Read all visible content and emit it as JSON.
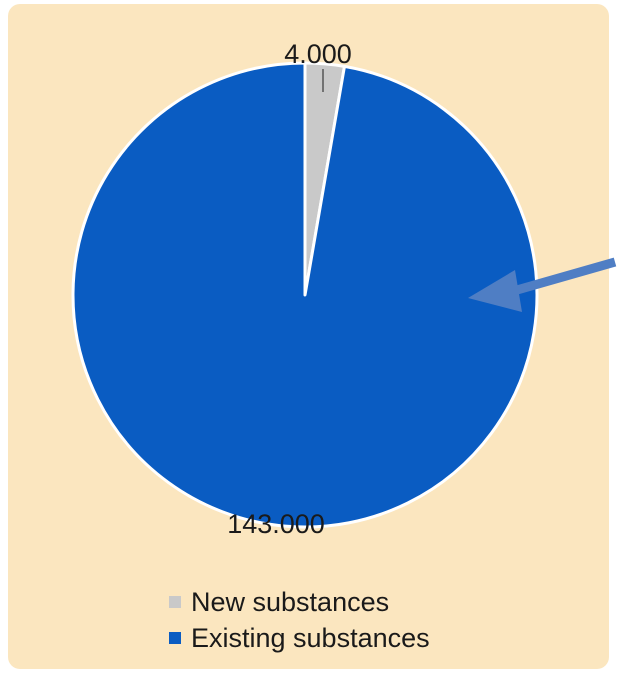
{
  "chart_data": {
    "type": "pie",
    "slices": [
      {
        "name": "New substances",
        "value": 4000,
        "label": "4.000",
        "color": "#c9c9c9"
      },
      {
        "name": "Existing substances",
        "value": 143000,
        "label": "143.000",
        "color": "#0a5cc2"
      }
    ],
    "legend_position": "bottom",
    "start_angle_deg": 0,
    "direction": "clockwise"
  },
  "legend": {
    "items": [
      {
        "label": "New substances",
        "color": "#c9c9c9"
      },
      {
        "label": "Existing substances",
        "color": "#0a5cc2"
      }
    ]
  },
  "annotation": {
    "type": "arrow",
    "color": "#4f7ec4",
    "points_to": "Existing substances"
  },
  "colors": {
    "background": "#fbe6bf"
  }
}
